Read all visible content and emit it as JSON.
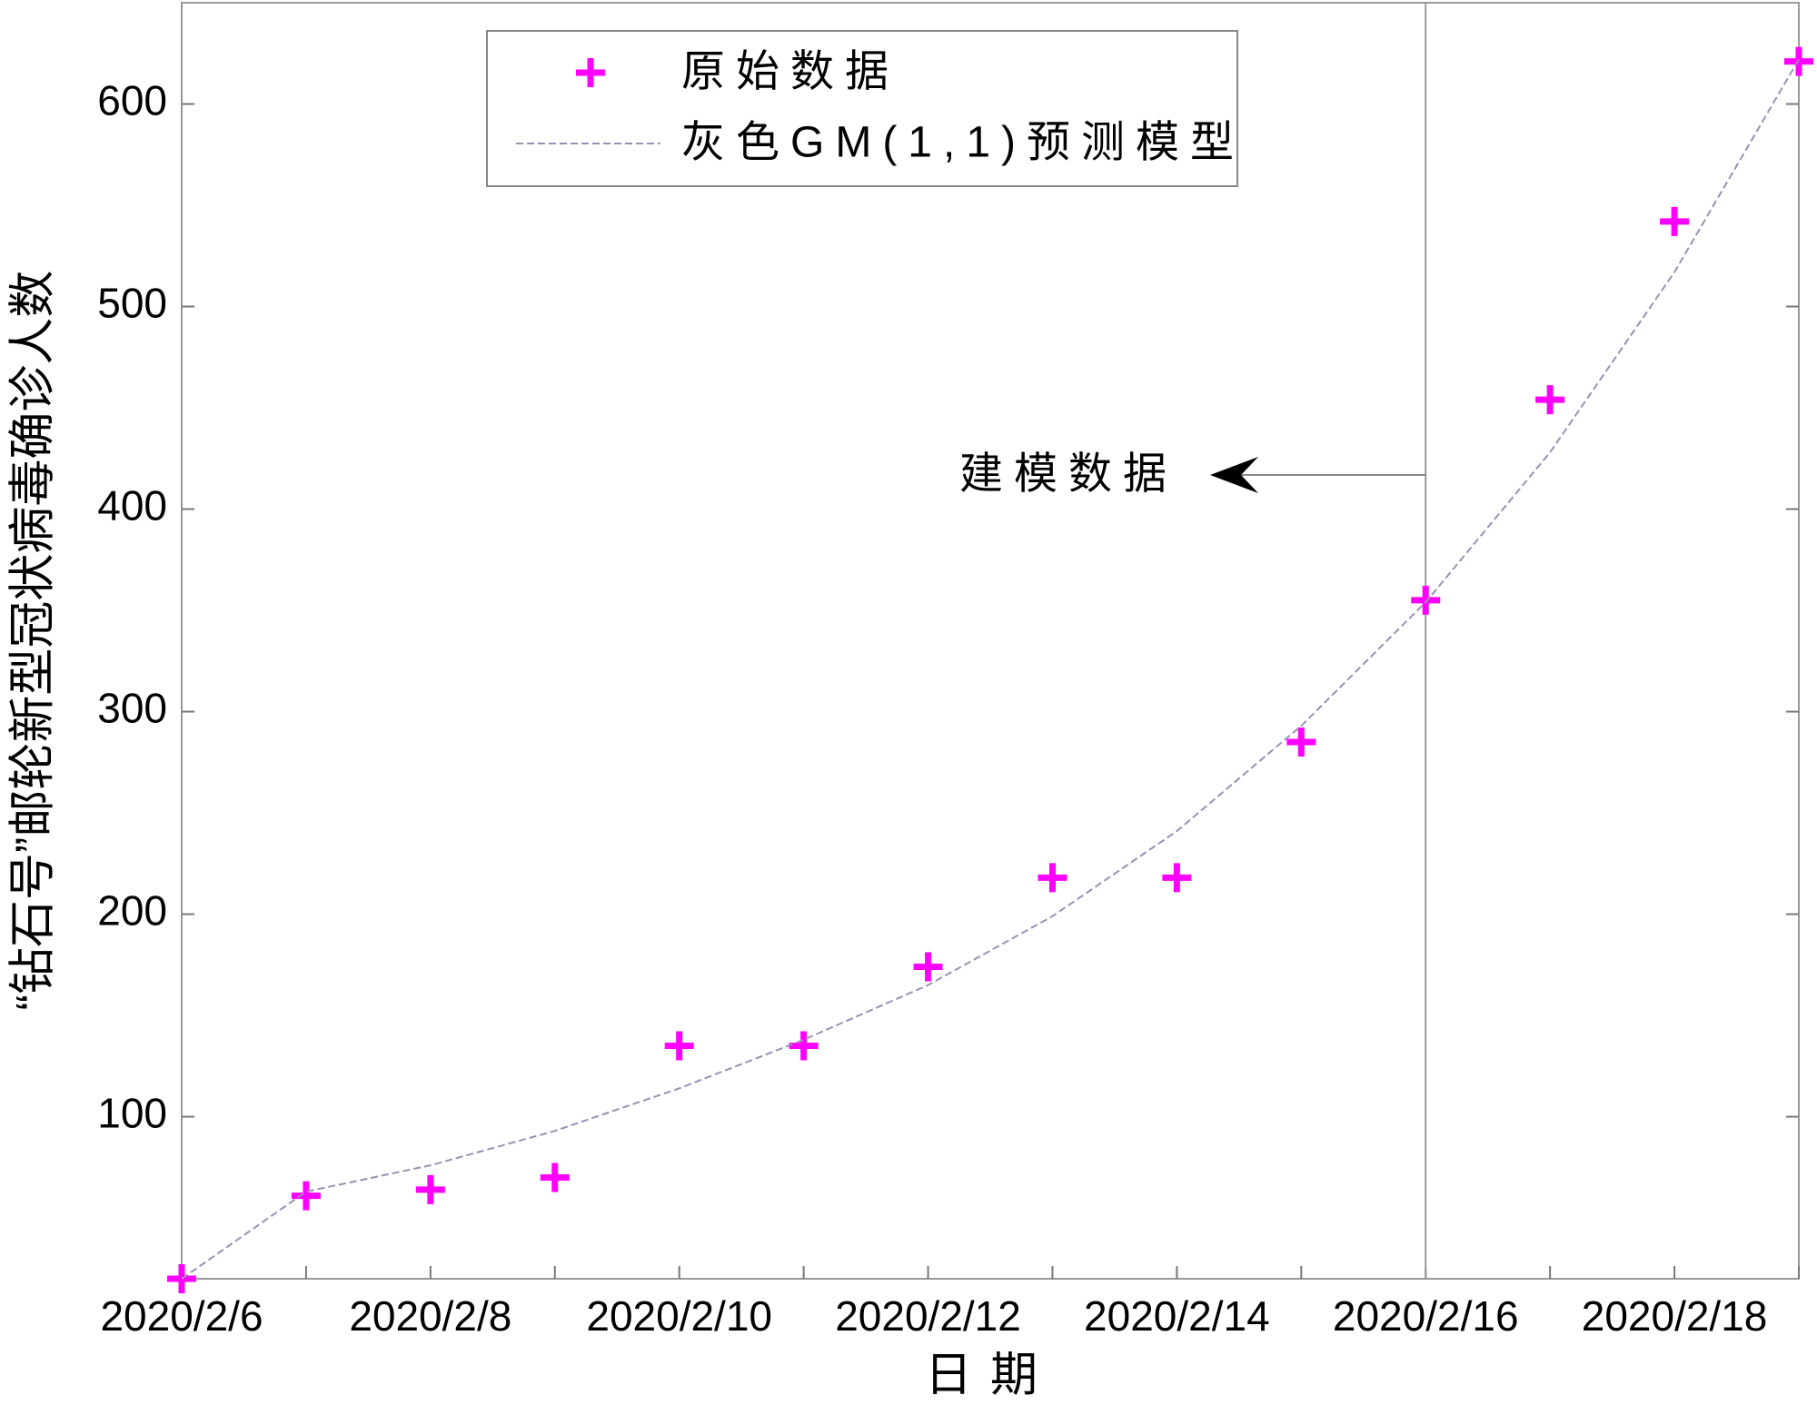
{
  "chart_data": {
    "type": "scatter-line",
    "x_label": "日期",
    "y_label": "“钻石号”邮轮新型冠状病毒确诊人数",
    "categories": [
      "2020/2/6",
      null,
      "2020/2/8",
      null,
      "2020/2/10",
      null,
      "2020/2/12",
      null,
      "2020/2/14",
      null,
      "2020/2/16",
      null,
      "2020/2/18",
      null
    ],
    "series": [
      {
        "name": "原始数据",
        "color": "#ff00ff",
        "marker": "plus",
        "values": [
          20,
          61,
          64,
          70,
          135,
          135,
          174,
          218,
          218,
          285,
          355,
          454,
          542,
          621
        ]
      },
      {
        "name": "灰色GM(1,1)预测模型",
        "color": "#9a90b4",
        "marker": "dashed-line",
        "values": [
          20,
          63,
          76,
          93,
          114,
          138,
          165,
          199,
          241,
          293,
          354,
          428,
          517,
          622
        ]
      }
    ],
    "ylim": [
      20,
      650
    ],
    "yticks": [
      100,
      200,
      300,
      400,
      500,
      600
    ],
    "split_x": "2020/2/16",
    "annotation": "建模数据",
    "legend": "upper center",
    "grid": false
  }
}
